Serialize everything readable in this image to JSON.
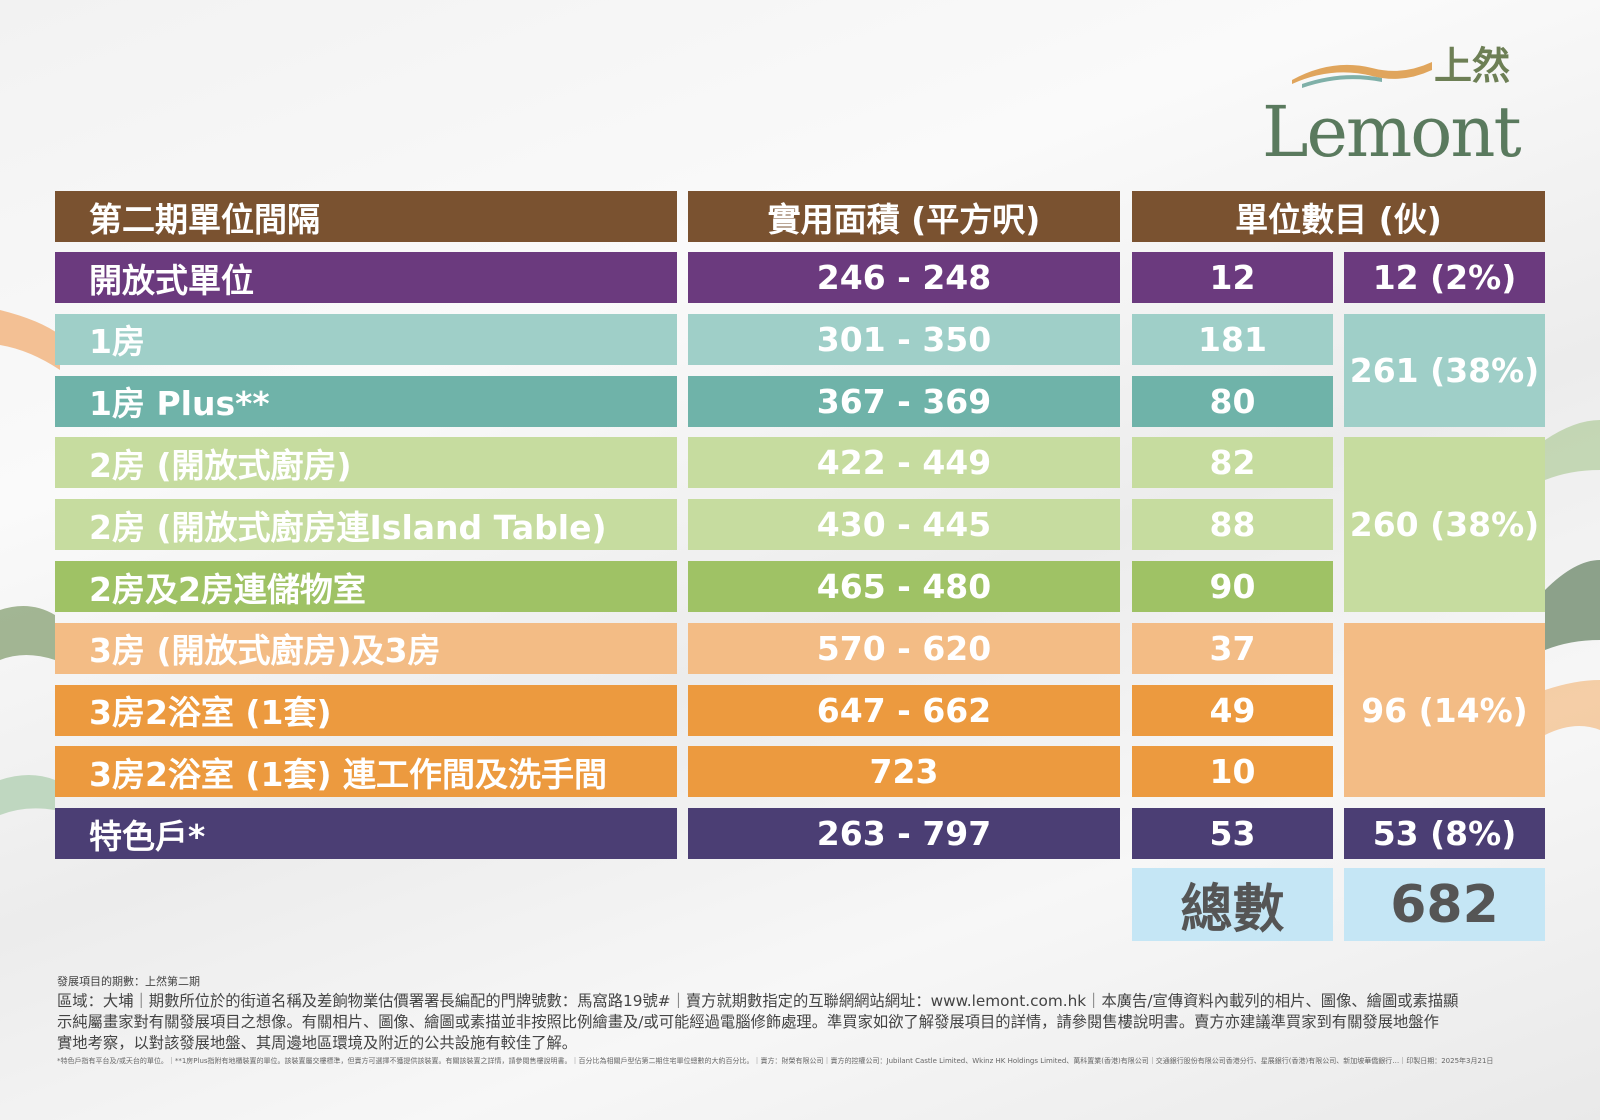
{
  "logo": {
    "en": "Lemont",
    "zh": "上然"
  },
  "table": {
    "headers": [
      "第二期單位間隔",
      "實用面積 (平方呎)",
      "單位數目 (伙)"
    ],
    "rows": [
      {
        "type": "開放式單位",
        "area": "246 - 248",
        "units": "12",
        "color": "#6b3a7e"
      },
      {
        "type": "1房",
        "area": "301 - 350",
        "units": "181",
        "color": "#9fcfc8"
      },
      {
        "type": "1房 Plus**",
        "area": "367 - 369",
        "units": "80",
        "color": "#6fb3a9"
      },
      {
        "type": "2房 (開放式廚房)",
        "area": "422 - 449",
        "units": "82",
        "color": "#c6dc9f"
      },
      {
        "type": "2房 (開放式廚房連Island Table)",
        "area": "430 - 445",
        "units": "88",
        "color": "#c6dc9f"
      },
      {
        "type": "2房及2房連儲物室",
        "area": "465 - 480",
        "units": "90",
        "color": "#9fc265"
      },
      {
        "type": "3房 (開放式廚房)及3房",
        "area": "570 - 620",
        "units": "37",
        "color": "#f3bc85"
      },
      {
        "type": "3房2浴室 (1套)",
        "area": "647 - 662",
        "units": "49",
        "color": "#ec9a3f"
      },
      {
        "type": "3房2浴室 (1套) 連工作間及洗手間",
        "area": "723",
        "units": "10",
        "color": "#ec9a3f"
      },
      {
        "type": "特色戶*",
        "area": "263 - 797",
        "units": "53",
        "color": "#4b3e74"
      }
    ],
    "groups": [
      {
        "label": "12 (2%)",
        "color": "#6b3a7e"
      },
      {
        "label": "261 (38%)",
        "color": "#9fcfc8"
      },
      {
        "label": "260 (38%)",
        "color": "#c6dc9f"
      },
      {
        "label": "96 (14%)",
        "color": "#f3bc85"
      },
      {
        "label": "53 (8%)",
        "color": "#4b3e74"
      }
    ],
    "total_label": "總數",
    "total_value": "682"
  },
  "footer": {
    "phase": "發展項目的期數：上然第二期",
    "line1": "區域：大埔｜期數所位於的街道名稱及差餉物業估價署署長編配的門牌號數：馬窩路19號#｜賣方就期數指定的互聯網網站網址：www.lemont.com.hk｜本廣告/宣傳資料內載列的相片、圖像、繪圖或素描顯",
    "line2": "示純屬畫家對有關發展項目之想像。有關相片、圖像、繪圖或素描並非按照比例繪畫及/或可能經過電腦修飾處理。準買家如欲了解發展項目的詳情，請參閱售樓說明書。賣方亦建議準買家到有關發展地盤作",
    "line3": "實地考察，以對該發展地盤、其周邊地區環境及附近的公共設施有較佳了解。",
    "fine": "*特色戶指有平台及/或天台的單位。｜**1房Plus指附有地櫃裝置的單位。該裝置屬交樓標準，但賣方可選擇不獲提供該裝置。有關該裝置之詳情，請參閱售樓說明書。｜百分比為相關戶型佔第二期住宅單位總數的大約百分比。｜賣方：財榮有限公司｜賣方的控權公司：Jubilant Castle Limited、Wkinz HK Holdings Limited、萬科置業(香港)有限公司｜交通銀行股份有限公司香港分行、星展銀行(香港)有限公司、新加坡華僑銀行…｜印製日期：2025年3月21日"
  }
}
